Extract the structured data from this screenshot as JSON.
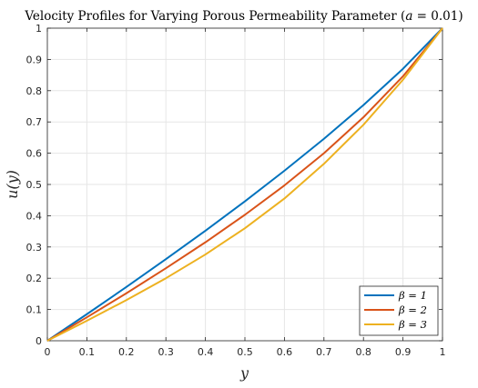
{
  "chart_data": {
    "type": "line",
    "title": "Velocity Profiles for Varying Porous Permeability Parameter (a = 0.01)",
    "xlabel": "y",
    "ylabel": "u(y)",
    "xlim": [
      0,
      1
    ],
    "ylim": [
      0,
      1
    ],
    "xticks": [
      "0",
      "0.1",
      "0.2",
      "0.3",
      "0.4",
      "0.5",
      "0.6",
      "0.7",
      "0.8",
      "0.9",
      "1"
    ],
    "yticks": [
      "0",
      "0.1",
      "0.2",
      "0.3",
      "0.4",
      "0.5",
      "0.6",
      "0.7",
      "0.8",
      "0.9",
      "1"
    ],
    "grid": true,
    "legend_position": "bottom-right",
    "x": [
      0,
      0.1,
      0.2,
      0.3,
      0.4,
      0.5,
      0.6,
      0.7,
      0.8,
      0.9,
      1.0
    ],
    "series": [
      {
        "name": "β = 1",
        "color": "#0072BD",
        "values": [
          0,
          0.085,
          0.172,
          0.261,
          0.352,
          0.446,
          0.544,
          0.646,
          0.754,
          0.87,
          1.0
        ]
      },
      {
        "name": "β = 2",
        "color": "#D95319",
        "values": [
          0,
          0.075,
          0.152,
          0.232,
          0.315,
          0.403,
          0.497,
          0.6,
          0.715,
          0.846,
          1.0
        ]
      },
      {
        "name": "β = 3",
        "color": "#EDB120",
        "values": [
          0,
          0.064,
          0.13,
          0.2,
          0.276,
          0.36,
          0.455,
          0.566,
          0.691,
          0.835,
          1.0
        ]
      }
    ]
  }
}
